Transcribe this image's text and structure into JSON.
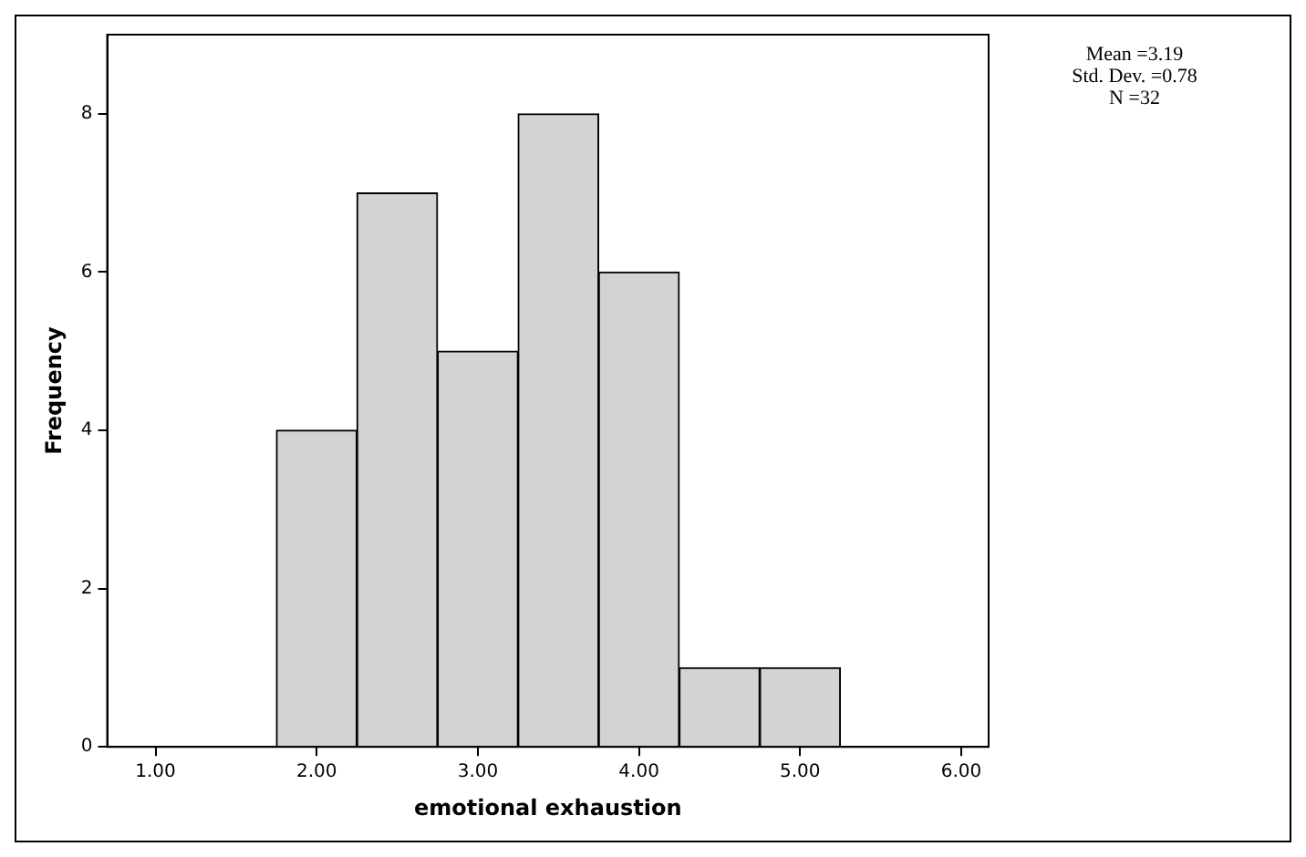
{
  "chart_data": {
    "type": "histogram",
    "xlabel": "emotional exhaustion",
    "ylabel": "Frequency",
    "bins": [
      1.75,
      2.25,
      2.75,
      3.25,
      3.75,
      4.25,
      4.75,
      5.25
    ],
    "values": [
      4,
      7,
      5,
      8,
      6,
      1,
      1
    ],
    "color": "#d3d3d3",
    "xlim": [
      0.7,
      6.17
    ],
    "xticks": [
      {
        "value": 1,
        "label": "1.00"
      },
      {
        "value": 2,
        "label": "2.00"
      },
      {
        "value": 3,
        "label": "3.00"
      },
      {
        "value": 4,
        "label": "4.00"
      },
      {
        "value": 5,
        "label": "5.00"
      },
      {
        "value": 6,
        "label": "6.00"
      }
    ],
    "ylim": [
      0,
      9
    ],
    "yticks": [
      0,
      2,
      4,
      6,
      8
    ],
    "grid": false,
    "legend": false,
    "annotations": [
      "Mean =3.19",
      "Std. Dev. =0.78",
      "N =32"
    ]
  }
}
